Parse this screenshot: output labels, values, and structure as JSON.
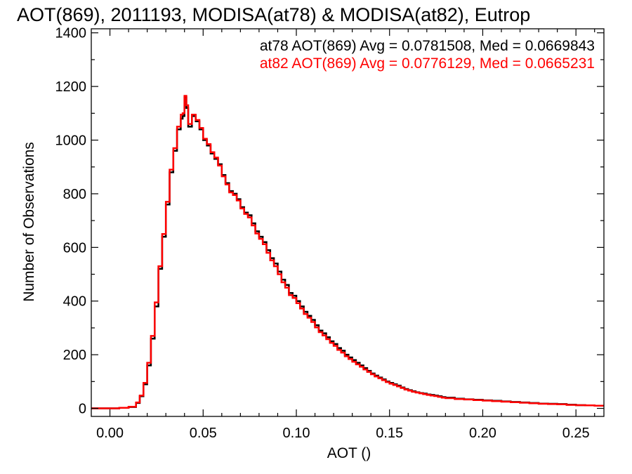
{
  "chart_data": {
    "type": "line",
    "title": "AOT(869), 2011193, MODISA(at78) & MODISA(at82), Eutrop",
    "xlabel": "AOT ()",
    "ylabel": "Number of Observations",
    "xlim": [
      -0.01,
      0.265
    ],
    "ylim": [
      -30,
      1415
    ],
    "xticks": [
      0.0,
      0.05,
      0.1,
      0.15,
      0.2,
      0.25
    ],
    "xtick_labels": [
      "0.00",
      "0.05",
      "0.10",
      "0.15",
      "0.20",
      "0.25"
    ],
    "yticks": [
      0,
      200,
      400,
      600,
      800,
      1000,
      1200,
      1400
    ],
    "ytick_labels": [
      "0",
      "200",
      "400",
      "600",
      "800",
      "1000",
      "1200",
      "1400"
    ],
    "grid": false,
    "annotations": [
      {
        "text": "at78 AOT(869) Avg = 0.0781508, Med = 0.0669843",
        "color": "#000000"
      },
      {
        "text": "at82 AOT(869) Avg = 0.0776129, Med = 0.0665231",
        "color": "#ff0000"
      }
    ],
    "series": [
      {
        "color": "#000000",
        "style": "step",
        "x": [
          -0.01,
          0.005,
          0.01,
          0.014,
          0.016,
          0.018,
          0.02,
          0.022,
          0.024,
          0.026,
          0.028,
          0.03,
          0.032,
          0.034,
          0.036,
          0.038,
          0.039,
          0.04,
          0.041,
          0.042,
          0.044,
          0.046,
          0.048,
          0.05,
          0.052,
          0.054,
          0.056,
          0.058,
          0.06,
          0.062,
          0.064,
          0.066,
          0.068,
          0.07,
          0.072,
          0.074,
          0.076,
          0.078,
          0.08,
          0.082,
          0.084,
          0.086,
          0.088,
          0.09,
          0.092,
          0.094,
          0.096,
          0.098,
          0.1,
          0.102,
          0.104,
          0.106,
          0.108,
          0.11,
          0.112,
          0.114,
          0.116,
          0.118,
          0.12,
          0.122,
          0.124,
          0.126,
          0.128,
          0.13,
          0.132,
          0.134,
          0.136,
          0.138,
          0.14,
          0.142,
          0.144,
          0.146,
          0.148,
          0.15,
          0.152,
          0.154,
          0.156,
          0.158,
          0.16,
          0.162,
          0.164,
          0.166,
          0.168,
          0.17,
          0.172,
          0.174,
          0.176,
          0.178,
          0.18,
          0.185,
          0.19,
          0.195,
          0.2,
          0.205,
          0.21,
          0.215,
          0.22,
          0.225,
          0.23,
          0.235,
          0.24,
          0.245,
          0.25,
          0.255,
          0.26,
          0.265
        ],
        "y": [
          0,
          2,
          5,
          20,
          45,
          90,
          160,
          260,
          380,
          520,
          640,
          760,
          880,
          960,
          1040,
          1080,
          1090,
          1160,
          1120,
          1050,
          1090,
          1070,
          1040,
          1000,
          980,
          950,
          930,
          910,
          870,
          840,
          810,
          800,
          780,
          750,
          730,
          720,
          690,
          660,
          640,
          620,
          590,
          560,
          540,
          510,
          480,
          460,
          430,
          420,
          400,
          380,
          360,
          345,
          330,
          310,
          290,
          280,
          265,
          250,
          240,
          225,
          215,
          200,
          190,
          180,
          170,
          160,
          150,
          140,
          130,
          122,
          115,
          108,
          100,
          95,
          90,
          85,
          78,
          72,
          68,
          64,
          60,
          57,
          55,
          52,
          50,
          48,
          45,
          42,
          40,
          36,
          34,
          32,
          30,
          28,
          26,
          24,
          22,
          20,
          18,
          17,
          16,
          14,
          12,
          11,
          10,
          10
        ]
      },
      {
        "color": "#ff0000",
        "style": "step",
        "x": [
          -0.01,
          0.005,
          0.01,
          0.014,
          0.016,
          0.018,
          0.02,
          0.022,
          0.024,
          0.026,
          0.028,
          0.03,
          0.032,
          0.034,
          0.036,
          0.038,
          0.039,
          0.04,
          0.041,
          0.042,
          0.044,
          0.046,
          0.048,
          0.05,
          0.052,
          0.054,
          0.056,
          0.058,
          0.06,
          0.062,
          0.064,
          0.066,
          0.068,
          0.07,
          0.072,
          0.074,
          0.076,
          0.078,
          0.08,
          0.082,
          0.084,
          0.086,
          0.088,
          0.09,
          0.092,
          0.094,
          0.096,
          0.098,
          0.1,
          0.102,
          0.104,
          0.106,
          0.108,
          0.11,
          0.112,
          0.114,
          0.116,
          0.118,
          0.12,
          0.122,
          0.124,
          0.126,
          0.128,
          0.13,
          0.132,
          0.134,
          0.136,
          0.138,
          0.14,
          0.142,
          0.144,
          0.146,
          0.148,
          0.15,
          0.152,
          0.154,
          0.156,
          0.158,
          0.16,
          0.162,
          0.164,
          0.166,
          0.168,
          0.17,
          0.172,
          0.174,
          0.176,
          0.178,
          0.18,
          0.185,
          0.19,
          0.195,
          0.2,
          0.205,
          0.21,
          0.215,
          0.22,
          0.225,
          0.23,
          0.235,
          0.24,
          0.245,
          0.25,
          0.255,
          0.26,
          0.265
        ],
        "y": [
          0,
          2,
          6,
          22,
          48,
          95,
          170,
          270,
          395,
          530,
          650,
          770,
          890,
          970,
          1050,
          1095,
          1100,
          1165,
          1130,
          1060,
          1095,
          1075,
          1045,
          1005,
          985,
          955,
          935,
          905,
          865,
          835,
          805,
          795,
          775,
          745,
          725,
          712,
          682,
          652,
          632,
          612,
          580,
          552,
          530,
          500,
          470,
          450,
          422,
          412,
          392,
          372,
          352,
          338,
          322,
          302,
          284,
          272,
          258,
          244,
          233,
          218,
          208,
          194,
          184,
          174,
          164,
          155,
          145,
          136,
          127,
          119,
          112,
          105,
          98,
          92,
          87,
          82,
          76,
          70,
          66,
          62,
          59,
          56,
          53,
          50,
          48,
          46,
          43,
          40,
          38,
          35,
          33,
          31,
          29,
          27,
          25,
          23,
          21,
          19,
          17,
          16,
          15,
          13,
          12,
          11,
          10,
          10
        ]
      }
    ]
  }
}
